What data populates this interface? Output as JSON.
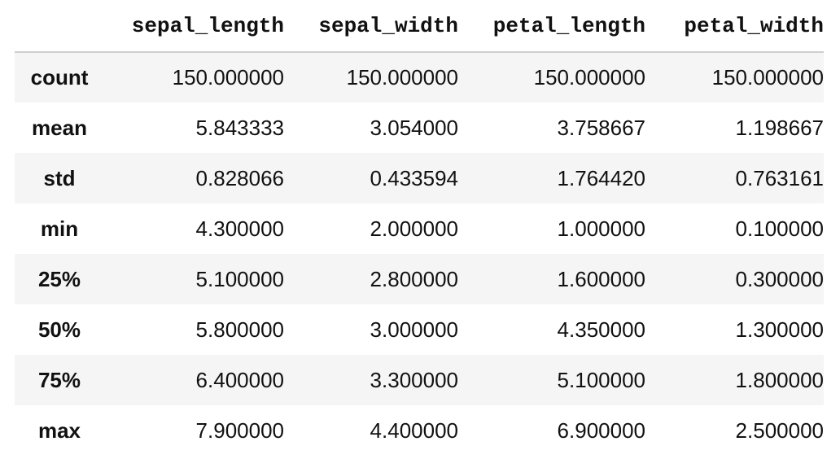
{
  "table": {
    "index_header": "",
    "columns": [
      "sepal_length",
      "sepal_width",
      "petal_length",
      "petal_width"
    ],
    "rows": [
      {
        "label": "count",
        "values": [
          "150.000000",
          "150.000000",
          "150.000000",
          "150.000000"
        ]
      },
      {
        "label": "mean",
        "values": [
          "5.843333",
          "3.054000",
          "3.758667",
          "1.198667"
        ]
      },
      {
        "label": "std",
        "values": [
          "0.828066",
          "0.433594",
          "1.764420",
          "0.763161"
        ]
      },
      {
        "label": "min",
        "values": [
          "4.300000",
          "2.000000",
          "1.000000",
          "0.100000"
        ]
      },
      {
        "label": "25%",
        "values": [
          "5.100000",
          "2.800000",
          "1.600000",
          "0.300000"
        ]
      },
      {
        "label": "50%",
        "values": [
          "5.800000",
          "3.000000",
          "4.350000",
          "1.300000"
        ]
      },
      {
        "label": "75%",
        "values": [
          "6.400000",
          "3.300000",
          "5.100000",
          "1.800000"
        ]
      },
      {
        "label": "max",
        "values": [
          "7.900000",
          "4.400000",
          "6.900000",
          "2.500000"
        ]
      }
    ]
  },
  "colors": {
    "stripe": "#f5f5f5",
    "background": "#ffffff",
    "header_rule": "#cfcfcf",
    "text": "#111111"
  }
}
